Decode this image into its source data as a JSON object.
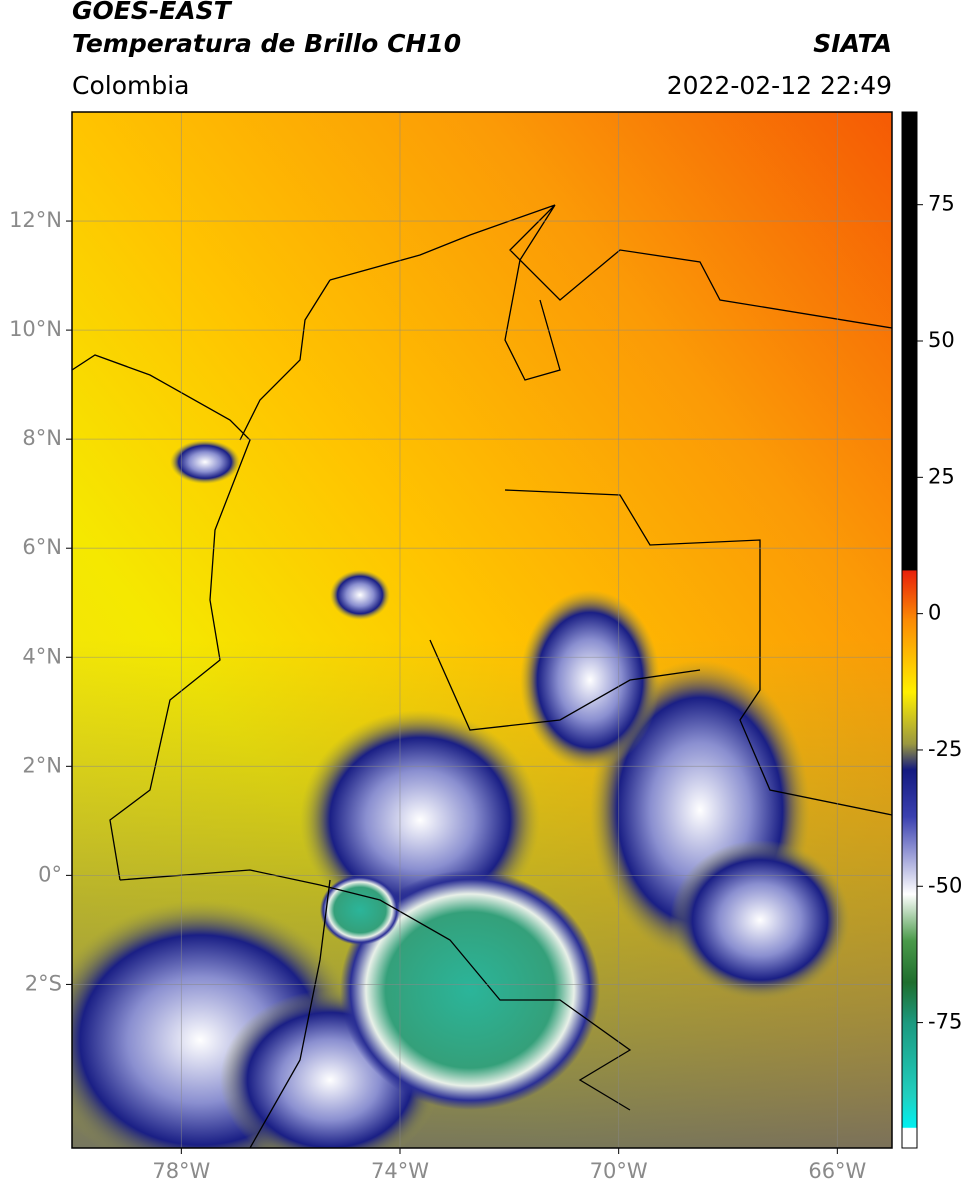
{
  "header": {
    "satellite": "GOES-EAST",
    "product": "Temperatura de Brillo CH10",
    "agency": "SIATA",
    "region": "Colombia",
    "timestamp": "2022-02-12 22:49"
  },
  "map": {
    "xlim": [
      -80,
      -65
    ],
    "ylim": [
      -5,
      14
    ],
    "xticks": [
      {
        "value": -78,
        "label": "78°W"
      },
      {
        "value": -74,
        "label": "74°W"
      },
      {
        "value": -70,
        "label": "70°W"
      },
      {
        "value": -66,
        "label": "66°W"
      }
    ],
    "yticks": [
      {
        "value": 12,
        "label": "12°N"
      },
      {
        "value": 10,
        "label": "10°N"
      },
      {
        "value": 8,
        "label": "8°N"
      },
      {
        "value": 6,
        "label": "6°N"
      },
      {
        "value": 4,
        "label": "4°N"
      },
      {
        "value": 2,
        "label": "2°N"
      },
      {
        "value": 0,
        "label": "0°"
      },
      {
        "value": -2,
        "label": "2°S"
      }
    ],
    "grid": true
  },
  "colorbar": {
    "lim": [
      -98,
      92
    ],
    "ticks": [
      75,
      50,
      25,
      0,
      -25,
      -50,
      -75
    ]
  }
}
